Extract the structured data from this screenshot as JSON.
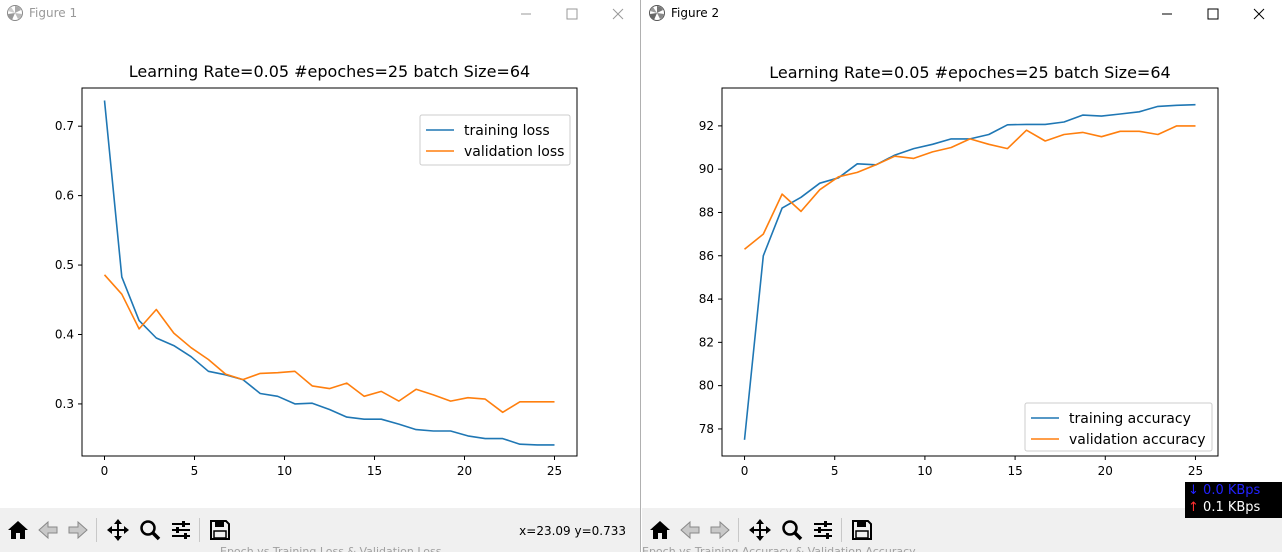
{
  "windows": [
    {
      "title": "Figure 1",
      "coords_readout": "x=23.09 y=0.733",
      "footer_ghost_text": "Epoch vs Training Loss & Validation Loss"
    },
    {
      "title": "Figure 2",
      "footer_ghost_text": "Epoch vs Training Accuracy & Validation Accuracy"
    }
  ],
  "toolbar": {
    "buttons": [
      "home-icon",
      "back-icon",
      "forward-icon",
      "pan-icon",
      "zoom-icon",
      "configure-subplots-icon",
      "save-icon"
    ]
  },
  "net_meter": {
    "down": "0.0 KBps",
    "up": "0.1 KBps",
    "down_color": "#2222ff",
    "up_color": "#ffffff",
    "up_arrow_color": "#ff3030"
  },
  "chart_data": [
    {
      "type": "line",
      "title": "Learning Rate=0.05   #epoches=25    batch Size=64",
      "xlabel": "",
      "ylabel": "",
      "xlim": [
        -1.25,
        26.25
      ],
      "ylim": [
        0.225,
        0.755
      ],
      "xticks": [
        0,
        5,
        10,
        15,
        20,
        25
      ],
      "yticks": [
        0.3,
        0.4,
        0.5,
        0.6,
        0.7
      ],
      "legend_position": "top-right",
      "grid": false,
      "series": [
        {
          "name": "training loss",
          "color": "#1f77b4",
          "x": [
            0,
            0.96,
            1.92,
            2.88,
            3.85,
            4.81,
            5.77,
            6.73,
            7.69,
            8.65,
            9.62,
            10.58,
            11.54,
            12.5,
            13.46,
            14.42,
            15.38,
            16.35,
            17.31,
            18.27,
            19.23,
            20.19,
            21.15,
            22.12,
            23.08,
            24.04,
            25
          ],
          "values": [
            0.737,
            0.483,
            0.42,
            0.395,
            0.384,
            0.368,
            0.347,
            0.342,
            0.335,
            0.315,
            0.311,
            0.3,
            0.301,
            0.292,
            0.281,
            0.278,
            0.278,
            0.271,
            0.263,
            0.261,
            0.261,
            0.254,
            0.25,
            0.25,
            0.242,
            0.241,
            0.241
          ]
        },
        {
          "name": "validation loss",
          "color": "#ff7f0e",
          "x": [
            0,
            0.96,
            1.92,
            2.88,
            3.85,
            4.81,
            5.77,
            6.73,
            7.69,
            8.65,
            9.62,
            10.58,
            11.54,
            12.5,
            13.46,
            14.42,
            15.38,
            16.35,
            17.31,
            18.27,
            19.23,
            20.19,
            21.15,
            22.12,
            23.08,
            24.04,
            25
          ],
          "values": [
            0.486,
            0.458,
            0.408,
            0.436,
            0.402,
            0.381,
            0.364,
            0.343,
            0.335,
            0.344,
            0.345,
            0.347,
            0.326,
            0.322,
            0.33,
            0.311,
            0.318,
            0.304,
            0.321,
            0.313,
            0.304,
            0.309,
            0.307,
            0.288,
            0.303,
            0.303,
            0.303
          ]
        }
      ]
    },
    {
      "type": "line",
      "title": "Learning Rate=0.05   #epoches=25    batch Size=64",
      "xlabel": "",
      "ylabel": "",
      "xlim": [
        -1.25,
        26.25
      ],
      "ylim": [
        76.75,
        93.75
      ],
      "xticks": [
        0,
        5,
        10,
        15,
        20,
        25
      ],
      "yticks": [
        78,
        80,
        82,
        84,
        86,
        88,
        90,
        92
      ],
      "legend_position": "bottom-right",
      "grid": false,
      "series": [
        {
          "name": "training accuracy",
          "color": "#1f77b4",
          "x": [
            0,
            1.04,
            2.08,
            3.13,
            4.17,
            5.21,
            6.25,
            7.29,
            8.33,
            9.38,
            10.42,
            11.46,
            12.5,
            13.54,
            14.58,
            15.63,
            16.67,
            17.71,
            18.75,
            19.79,
            20.83,
            21.88,
            22.92,
            23.96,
            25
          ],
          "values": [
            77.5,
            86.0,
            88.2,
            88.7,
            89.35,
            89.6,
            90.25,
            90.2,
            90.65,
            90.95,
            91.15,
            91.4,
            91.4,
            91.6,
            92.05,
            92.07,
            92.07,
            92.18,
            92.5,
            92.45,
            92.55,
            92.65,
            92.9,
            92.95,
            92.98
          ]
        },
        {
          "name": "validation accuracy",
          "color": "#ff7f0e",
          "x": [
            0,
            1.04,
            2.08,
            3.13,
            4.17,
            5.21,
            6.25,
            7.29,
            8.33,
            9.38,
            10.42,
            11.46,
            12.5,
            13.54,
            14.58,
            15.63,
            16.67,
            17.71,
            18.75,
            19.79,
            20.83,
            21.88,
            22.92,
            23.96,
            25
          ],
          "values": [
            86.3,
            87.0,
            88.85,
            88.05,
            89.05,
            89.65,
            89.85,
            90.2,
            90.6,
            90.5,
            90.8,
            91.0,
            91.4,
            91.15,
            90.95,
            91.8,
            91.3,
            91.6,
            91.7,
            91.5,
            91.75,
            91.75,
            91.6,
            92.0,
            92.0
          ]
        }
      ]
    }
  ]
}
